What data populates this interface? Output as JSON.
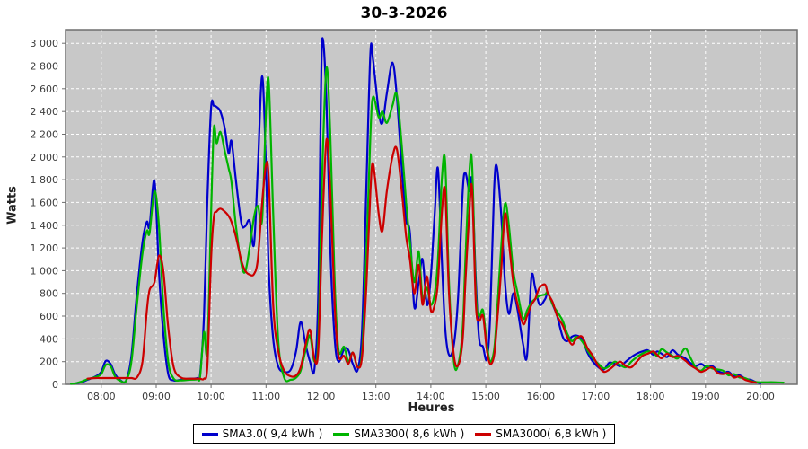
{
  "chart_data": {
    "type": "line",
    "title": "30-3-2026",
    "xlabel": "Heures",
    "ylabel": "Watts",
    "x_unit": "hours_decimal",
    "xlim": [
      7.35,
      20.67
    ],
    "ylim": [
      0,
      3120
    ],
    "grid": "white dashed gridlines on gray plot background",
    "legend_position": "bottom-center",
    "colors": {
      "plot_bg": "#c8c8c8",
      "grid": "#ffffff",
      "axis": "#6e6e6e",
      "tick_text": "#3c3c3c"
    },
    "x_ticks": [
      {
        "value": 8,
        "label": "08:00"
      },
      {
        "value": 9,
        "label": "09:00"
      },
      {
        "value": 10,
        "label": "10:00"
      },
      {
        "value": 11,
        "label": "11:00"
      },
      {
        "value": 12,
        "label": "12:00"
      },
      {
        "value": 13,
        "label": "13:00"
      },
      {
        "value": 14,
        "label": "14:00"
      },
      {
        "value": 15,
        "label": "15:00"
      },
      {
        "value": 16,
        "label": "16:00"
      },
      {
        "value": 17,
        "label": "17:00"
      },
      {
        "value": 18,
        "label": "18:00"
      },
      {
        "value": 19,
        "label": "19:00"
      },
      {
        "value": 20,
        "label": "20:00"
      }
    ],
    "y_ticks": [
      {
        "value": 0,
        "label": "0"
      },
      {
        "value": 200,
        "label": "200"
      },
      {
        "value": 400,
        "label": "400"
      },
      {
        "value": 600,
        "label": "600"
      },
      {
        "value": 800,
        "label": "800"
      },
      {
        "value": 1000,
        "label": "1 000"
      },
      {
        "value": 1200,
        "label": "1 200"
      },
      {
        "value": 1400,
        "label": "1 400"
      },
      {
        "value": 1600,
        "label": "1 600"
      },
      {
        "value": 1800,
        "label": "1 800"
      },
      {
        "value": 2000,
        "label": "2 000"
      },
      {
        "value": 2200,
        "label": "2 200"
      },
      {
        "value": 2400,
        "label": "2 400"
      },
      {
        "value": 2600,
        "label": "2 600"
      },
      {
        "value": 2800,
        "label": "2 800"
      },
      {
        "value": 3000,
        "label": "3 000"
      }
    ],
    "x": [
      7.45,
      7.55,
      7.65,
      7.75,
      7.9,
      8.0,
      8.08,
      8.17,
      8.25,
      8.35,
      8.45,
      8.55,
      8.65,
      8.75,
      8.83,
      8.88,
      8.97,
      9.05,
      9.13,
      9.22,
      9.32,
      9.45,
      9.6,
      9.75,
      9.8,
      9.87,
      9.93,
      10.0,
      10.05,
      10.1,
      10.17,
      10.25,
      10.32,
      10.37,
      10.45,
      10.55,
      10.62,
      10.7,
      10.78,
      10.85,
      10.93,
      11.0,
      11.05,
      11.13,
      11.22,
      11.33,
      11.45,
      11.55,
      11.63,
      11.72,
      11.8,
      11.88,
      11.95,
      12.02,
      12.1,
      12.17,
      12.25,
      12.32,
      12.42,
      12.5,
      12.58,
      12.67,
      12.75,
      12.83,
      12.9,
      12.95,
      13.05,
      13.12,
      13.2,
      13.3,
      13.38,
      13.47,
      13.55,
      13.62,
      13.7,
      13.78,
      13.85,
      13.93,
      14.0,
      14.07,
      14.13,
      14.2,
      14.26,
      14.33,
      14.42,
      14.5,
      14.58,
      14.63,
      14.7,
      14.75,
      14.82,
      14.88,
      14.95,
      15.02,
      15.08,
      15.15,
      15.2,
      15.28,
      15.35,
      15.42,
      15.5,
      15.58,
      15.68,
      15.75,
      15.83,
      15.9,
      15.98,
      16.08,
      16.13,
      16.22,
      16.3,
      16.4,
      16.48,
      16.57,
      16.65,
      16.75,
      16.85,
      16.95,
      17.05,
      17.15,
      17.25,
      17.35,
      17.45,
      17.55,
      17.65,
      17.75,
      17.85,
      17.95,
      18.05,
      18.12,
      18.2,
      18.3,
      18.4,
      18.5,
      18.63,
      18.72,
      18.82,
      18.92,
      19.02,
      19.12,
      19.22,
      19.32,
      19.42,
      19.52,
      19.62,
      19.72,
      19.82,
      19.92,
      20.0,
      20.1,
      20.25,
      20.42
    ],
    "series": [
      {
        "name": "SMA3.0( 9,4 kWh )",
        "color": "#0000cc",
        "values": [
          null,
          10,
          20,
          40,
          70,
          110,
          205,
          180,
          90,
          35,
          30,
          250,
          800,
          1250,
          1430,
          1390,
          1790,
          1000,
          450,
          90,
          35,
          40,
          50,
          55,
          90,
          600,
          1600,
          2430,
          2450,
          2440,
          2400,
          2250,
          2030,
          2140,
          1800,
          1420,
          1390,
          1440,
          1230,
          1900,
          2710,
          1900,
          1000,
          400,
          160,
          110,
          130,
          300,
          550,
          350,
          200,
          130,
          800,
          3030,
          2500,
          1200,
          400,
          200,
          310,
          300,
          180,
          130,
          500,
          1800,
          2920,
          2850,
          2400,
          2300,
          2560,
          2830,
          2530,
          1900,
          1450,
          1330,
          680,
          900,
          1100,
          700,
          950,
          1500,
          1900,
          1100,
          500,
          260,
          350,
          800,
          1700,
          1860,
          1700,
          1780,
          900,
          400,
          330,
          220,
          600,
          1700,
          1920,
          1500,
          900,
          620,
          800,
          650,
          350,
          250,
          940,
          850,
          700,
          750,
          800,
          700,
          600,
          420,
          380,
          420,
          430,
          400,
          280,
          200,
          150,
          130,
          190,
          180,
          160,
          200,
          240,
          270,
          290,
          300,
          260,
          290,
          270,
          240,
          300,
          260,
          230,
          190,
          160,
          180,
          150,
          160,
          120,
          100,
          110,
          70,
          80,
          50,
          40,
          20,
          10,
          null,
          null,
          null
        ]
      },
      {
        "name": "SMA3300( 8,6 kWh )",
        "color": "#00b400",
        "values": [
          5,
          10,
          25,
          45,
          65,
          90,
          170,
          160,
          70,
          30,
          30,
          200,
          700,
          1150,
          1350,
          1330,
          1700,
          1400,
          700,
          200,
          50,
          35,
          40,
          45,
          70,
          460,
          300,
          1500,
          2250,
          2120,
          2220,
          2050,
          1900,
          1780,
          1400,
          1060,
          990,
          1200,
          1470,
          1570,
          1450,
          2400,
          2650,
          1500,
          400,
          60,
          40,
          60,
          120,
          300,
          430,
          200,
          400,
          1800,
          2780,
          2200,
          900,
          300,
          330,
          200,
          280,
          150,
          300,
          1200,
          2200,
          2530,
          2350,
          2400,
          2300,
          2450,
          2550,
          2100,
          1600,
          1250,
          900,
          1170,
          750,
          850,
          700,
          800,
          1100,
          1800,
          1960,
          900,
          200,
          180,
          500,
          1100,
          1850,
          1940,
          800,
          600,
          650,
          350,
          200,
          300,
          600,
          1200,
          1590,
          1400,
          1000,
          800,
          580,
          650,
          720,
          750,
          780,
          790,
          810,
          700,
          640,
          560,
          450,
          380,
          420,
          380,
          300,
          230,
          180,
          140,
          160,
          200,
          170,
          150,
          200,
          240,
          270,
          290,
          280,
          250,
          310,
          280,
          250,
          230,
          316,
          240,
          150,
          120,
          160,
          140,
          130,
          120,
          80,
          90,
          60,
          55,
          30,
          20,
          18,
          18,
          18,
          15
        ]
      },
      {
        "name": "SMA3000( 6,8 kWh )",
        "color": "#cc0000",
        "values": [
          null,
          null,
          null,
          50,
          55,
          55,
          55,
          55,
          55,
          55,
          55,
          55,
          60,
          200,
          650,
          830,
          900,
          1130,
          1000,
          500,
          150,
          60,
          50,
          50,
          50,
          50,
          150,
          1100,
          1470,
          1520,
          1545,
          1520,
          1480,
          1430,
          1300,
          1090,
          1000,
          965,
          970,
          1100,
          1600,
          1930,
          1800,
          700,
          300,
          120,
          70,
          80,
          150,
          350,
          480,
          220,
          300,
          1300,
          2150,
          1700,
          700,
          250,
          250,
          180,
          280,
          150,
          250,
          900,
          1700,
          1940,
          1500,
          1350,
          1700,
          2000,
          2070,
          1700,
          1300,
          1100,
          800,
          1050,
          700,
          950,
          650,
          700,
          900,
          1500,
          1700,
          800,
          250,
          170,
          400,
          900,
          1500,
          1720,
          700,
          560,
          600,
          300,
          180,
          250,
          500,
          1000,
          1500,
          1250,
          900,
          700,
          530,
          600,
          700,
          750,
          850,
          877,
          800,
          720,
          600,
          520,
          420,
          350,
          400,
          420,
          320,
          250,
          160,
          110,
          130,
          170,
          200,
          160,
          150,
          200,
          250,
          270,
          290,
          260,
          230,
          270,
          240,
          250,
          210,
          170,
          140,
          110,
          130,
          150,
          100,
          90,
          100,
          60,
          70,
          40,
          25,
          15,
          null,
          null,
          null,
          null
        ]
      }
    ]
  }
}
